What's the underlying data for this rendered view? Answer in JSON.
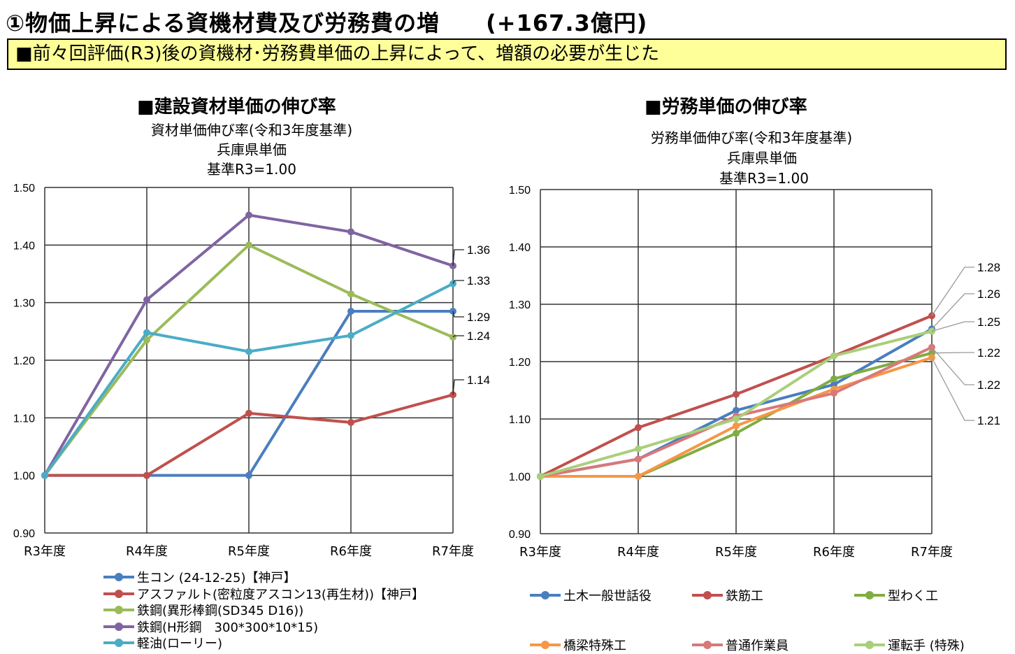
{
  "header": {
    "title": "①物価上昇による資機材費及び労務費の増　　(+167.3億円)",
    "banner": "■前々回評価(R3)後の資機材･労務費単価の上昇によって、増額の必要が生じた"
  },
  "chart_data": [
    {
      "type": "line",
      "heading": "■建設資材単価の伸び率",
      "title": "資材単価伸び率(令和3年度基準)",
      "subtitle1": "兵庫県単価",
      "subtitle2": "基準R3=1.00",
      "categories": [
        "R3年度",
        "R4年度",
        "R5年度",
        "R6年度",
        "R7年度"
      ],
      "ylim": [
        0.9,
        1.5
      ],
      "yticks": [
        "0.90",
        "1.00",
        "1.10",
        "1.20",
        "1.30",
        "1.40",
        "1.50"
      ],
      "grid": true,
      "legend": "bottom",
      "series": [
        {
          "name": "生コン (24-12-25)【神戸】",
          "color": "#4a7ebf",
          "values": [
            1.0,
            1.0,
            1.0,
            1.285,
            1.285
          ],
          "end_label": "1.29"
        },
        {
          "name": "アスファルト(密粒度アスコン13(再生材))【神戸】",
          "color": "#c0504d",
          "values": [
            1.0,
            1.0,
            1.108,
            1.092,
            1.14
          ],
          "end_label": "1.14"
        },
        {
          "name": "鉄鋼(異形棒鋼(SD345 D16))",
          "color": "#9bbb59",
          "values": [
            1.0,
            1.235,
            1.4,
            1.315,
            1.24
          ],
          "end_label": "1.24"
        },
        {
          "name": "鉄鋼(H形鋼　300*300*10*15)",
          "color": "#8064a2",
          "values": [
            1.0,
            1.305,
            1.452,
            1.423,
            1.364
          ],
          "end_label": "1.36"
        },
        {
          "name": "軽油(ローリー)",
          "color": "#4bacc6",
          "values": [
            1.0,
            1.248,
            1.215,
            1.243,
            1.333
          ],
          "end_label": "1.33"
        }
      ]
    },
    {
      "type": "line",
      "heading": "■労務単価の伸び率",
      "title": "労務単価伸び率(令和3年度基準)",
      "subtitle1": "兵庫県単価",
      "subtitle2": "基準R3=1.00",
      "categories": [
        "R3年度",
        "R4年度",
        "R5年度",
        "R6年度",
        "R7年度"
      ],
      "ylim": [
        0.9,
        1.5
      ],
      "yticks": [
        "0.90",
        "1.00",
        "1.10",
        "1.20",
        "1.30",
        "1.40",
        "1.50"
      ],
      "grid": true,
      "legend": "bottom",
      "series": [
        {
          "name": "土木一般世話役",
          "color": "#4a7ebf",
          "values": [
            1.0,
            1.03,
            1.115,
            1.16,
            1.257
          ],
          "end_label": "1.26"
        },
        {
          "name": "鉄筋工",
          "color": "#c0504d",
          "values": [
            1.0,
            1.085,
            1.143,
            1.21,
            1.28
          ],
          "end_label": "1.28"
        },
        {
          "name": "型わく工",
          "color": "#7fad43",
          "values": [
            1.0,
            1.0,
            1.075,
            1.17,
            1.215
          ],
          "end_label": "1.22"
        },
        {
          "name": "橋梁特殊工",
          "color": "#f79646",
          "values": [
            1.0,
            1.0,
            1.088,
            1.152,
            1.207
          ],
          "end_label": "1.21"
        },
        {
          "name": "普通作業員",
          "color": "#d9787a",
          "values": [
            1.0,
            1.03,
            1.105,
            1.145,
            1.225
          ],
          "end_label": "1.22"
        },
        {
          "name": "運転手 (特殊)",
          "color": "#a9cf7a",
          "values": [
            1.0,
            1.048,
            1.1,
            1.21,
            1.253
          ],
          "end_label": "1.25"
        }
      ]
    }
  ]
}
